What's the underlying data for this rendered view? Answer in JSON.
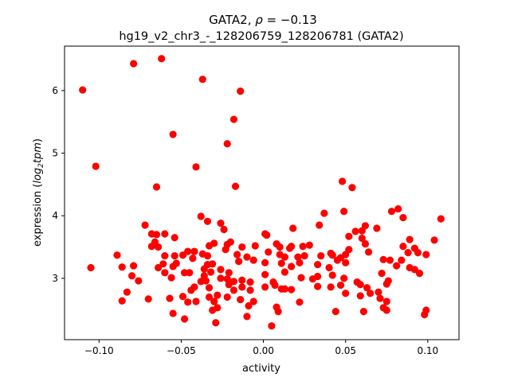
{
  "chart_data": {
    "type": "scatter",
    "title_gene": "GATA2",
    "title_rho_symbol": "ρ",
    "title_rho_value": " = −0.13",
    "subtitle": "hg19_v2_chr3_-_128206759_128206781 (GATA2)",
    "xlabel": "activity",
    "ylabel_prefix": "expression (",
    "ylabel_log": "log",
    "ylabel_sub": "2",
    "ylabel_tpm": "tpm",
    "ylabel_suffix": ")",
    "xlim": [
      -0.121,
      0.119
    ],
    "ylim": [
      2.02,
      6.71
    ],
    "xticks": [
      -0.1,
      -0.05,
      0.0,
      0.05,
      0.1
    ],
    "xtick_labels": [
      "−0.10",
      "−0.05",
      "0.00",
      "0.05",
      "0.10"
    ],
    "yticks": [
      3,
      4,
      5,
      6
    ],
    "ytick_labels": [
      "3",
      "4",
      "5",
      "6"
    ],
    "grid": false,
    "marker_color": "#ff0000",
    "points": [
      [
        -0.11,
        6.01
      ],
      [
        -0.079,
        6.43
      ],
      [
        -0.062,
        6.51
      ],
      [
        -0.037,
        6.18
      ],
      [
        -0.014,
        5.99
      ],
      [
        -0.018,
        5.54
      ],
      [
        -0.055,
        5.3
      ],
      [
        -0.022,
        5.15
      ],
      [
        -0.102,
        4.79
      ],
      [
        -0.041,
        4.78
      ],
      [
        -0.065,
        4.46
      ],
      [
        -0.017,
        4.47
      ],
      [
        0.048,
        4.55
      ],
      [
        0.054,
        4.45
      ],
      [
        0.108,
        3.95
      ],
      [
        -0.105,
        3.17
      ],
      [
        -0.089,
        3.37
      ],
      [
        -0.086,
        3.18
      ],
      [
        -0.079,
        3.2
      ],
      [
        -0.08,
        3.04
      ],
      [
        -0.076,
        2.96
      ],
      [
        -0.083,
        2.78
      ],
      [
        -0.086,
        2.64
      ],
      [
        -0.072,
        3.85
      ],
      [
        -0.07,
        2.67
      ],
      [
        -0.068,
        3.71
      ],
      [
        -0.065,
        3.7
      ],
      [
        -0.06,
        3.71
      ],
      [
        -0.066,
        3.58
      ],
      [
        -0.068,
        3.51
      ],
      [
        -0.064,
        3.5
      ],
      [
        -0.054,
        3.65
      ],
      [
        -0.06,
        3.36
      ],
      [
        -0.054,
        3.36
      ],
      [
        -0.061,
        3.23
      ],
      [
        -0.064,
        3.17
      ],
      [
        -0.06,
        3.09
      ],
      [
        -0.055,
        3.19
      ],
      [
        -0.053,
        3.24
      ],
      [
        -0.056,
        3.01
      ],
      [
        -0.049,
        3.37
      ],
      [
        -0.046,
        3.43
      ],
      [
        -0.042,
        3.43
      ],
      [
        -0.043,
        3.32
      ],
      [
        -0.048,
        3.09
      ],
      [
        -0.045,
        3.09
      ],
      [
        -0.038,
        3.99
      ],
      [
        -0.034,
        3.91
      ],
      [
        -0.026,
        3.88
      ],
      [
        -0.024,
        3.78
      ],
      [
        -0.033,
        3.52
      ],
      [
        -0.03,
        3.56
      ],
      [
        -0.022,
        3.54
      ],
      [
        -0.02,
        3.58
      ],
      [
        -0.023,
        3.46
      ],
      [
        -0.013,
        3.5
      ],
      [
        -0.005,
        3.52
      ],
      [
        -0.037,
        3.39
      ],
      [
        -0.034,
        3.36
      ],
      [
        -0.016,
        3.38
      ],
      [
        -0.015,
        3.27
      ],
      [
        -0.01,
        3.34
      ],
      [
        -0.006,
        3.29
      ],
      [
        -0.034,
        3.22
      ],
      [
        -0.031,
        3.23
      ],
      [
        -0.036,
        3.15
      ],
      [
        -0.032,
        3.1
      ],
      [
        -0.026,
        3.14
      ],
      [
        -0.021,
        3.09
      ],
      [
        -0.036,
        3.04
      ],
      [
        -0.035,
        2.96
      ],
      [
        -0.038,
        2.95
      ],
      [
        -0.026,
        3.0
      ],
      [
        -0.022,
        2.99
      ],
      [
        -0.018,
        2.95
      ],
      [
        -0.021,
        2.9
      ],
      [
        -0.013,
        2.97
      ],
      [
        -0.008,
        2.94
      ],
      [
        -0.033,
        2.85
      ],
      [
        -0.018,
        2.81
      ],
      [
        -0.013,
        2.86
      ],
      [
        -0.008,
        2.81
      ],
      [
        -0.042,
        2.86
      ],
      [
        -0.044,
        2.81
      ],
      [
        -0.049,
        2.71
      ],
      [
        -0.046,
        2.62
      ],
      [
        -0.041,
        2.63
      ],
      [
        -0.057,
        2.68
      ],
      [
        -0.055,
        2.44
      ],
      [
        -0.048,
        2.35
      ],
      [
        -0.033,
        2.7
      ],
      [
        -0.03,
        2.63
      ],
      [
        -0.028,
        2.73
      ],
      [
        -0.028,
        2.53
      ],
      [
        -0.031,
        2.49
      ],
      [
        -0.022,
        2.7
      ],
      [
        -0.029,
        2.29
      ],
      [
        -0.014,
        2.66
      ],
      [
        -0.009,
        2.56
      ],
      [
        -0.006,
        2.63
      ],
      [
        -0.01,
        2.39
      ],
      [
        0.037,
        4.04
      ],
      [
        0.049,
        4.07
      ],
      [
        0.078,
        4.07
      ],
      [
        0.082,
        4.11
      ],
      [
        0.085,
        3.97
      ],
      [
        0.034,
        3.85
      ],
      [
        0.018,
        3.8
      ],
      [
        0.069,
        3.8
      ],
      [
        0.062,
        3.84
      ],
      [
        0.06,
        3.76
      ],
      [
        0.056,
        3.75
      ],
      [
        0.052,
        3.67
      ],
      [
        0.06,
        3.64
      ],
      [
        0.062,
        3.55
      ],
      [
        0.064,
        3.42
      ],
      [
        0.052,
        3.46
      ],
      [
        0.089,
        3.62
      ],
      [
        0.104,
        3.61
      ],
      [
        0.085,
        3.51
      ],
      [
        0.092,
        3.48
      ],
      [
        0.088,
        3.41
      ],
      [
        0.094,
        3.41
      ],
      [
        0.099,
        3.38
      ],
      [
        0.084,
        3.29
      ],
      [
        0.081,
        3.2
      ],
      [
        0.073,
        3.3
      ],
      [
        0.077,
        3.29
      ],
      [
        0.089,
        3.17
      ],
      [
        0.092,
        3.14
      ],
      [
        0.095,
        3.08
      ],
      [
        0.072,
        3.08
      ],
      [
        0.076,
        2.96
      ],
      [
        0.075,
        2.91
      ],
      [
        0.07,
        2.78
      ],
      [
        0.071,
        2.68
      ],
      [
        0.075,
        2.63
      ],
      [
        0.073,
        2.53
      ],
      [
        0.075,
        2.49
      ],
      [
        0.099,
        2.49
      ],
      [
        0.098,
        2.42
      ],
      [
        0.057,
        2.94
      ],
      [
        0.059,
        2.9
      ],
      [
        0.063,
        2.85
      ],
      [
        0.065,
        2.76
      ],
      [
        0.059,
        2.72
      ],
      [
        0.061,
        2.47
      ],
      [
        0.044,
        2.47
      ],
      [
        0.05,
        2.76
      ],
      [
        0.047,
        2.89
      ],
      [
        0.049,
        3.0
      ],
      [
        0.041,
        2.86
      ],
      [
        0.042,
        3.05
      ],
      [
        0.04,
        3.17
      ],
      [
        0.033,
        3.22
      ],
      [
        0.035,
        3.36
      ],
      [
        0.041,
        3.4
      ],
      [
        0.042,
        3.37
      ],
      [
        0.045,
        3.29
      ],
      [
        0.047,
        3.33
      ],
      [
        0.05,
        3.38
      ],
      [
        0.05,
        3.25
      ],
      [
        0.03,
        2.99
      ],
      [
        0.033,
        3.03
      ],
      [
        0.033,
        2.87
      ],
      [
        0.023,
        3.01
      ],
      [
        0.022,
        2.62
      ],
      [
        0.028,
        3.53
      ],
      [
        0.024,
        3.51
      ],
      [
        0.025,
        3.36
      ],
      [
        0.021,
        3.34
      ],
      [
        0.022,
        3.25
      ],
      [
        0.017,
        3.19
      ],
      [
        0.013,
        3.1
      ],
      [
        0.016,
        3.48
      ],
      [
        0.017,
        3.51
      ],
      [
        0.008,
        3.55
      ],
      [
        0.01,
        3.5
      ],
      [
        0.01,
        3.38
      ],
      [
        0.013,
        3.34
      ],
      [
        0.011,
        3.24
      ],
      [
        0.003,
        3.42
      ],
      [
        0.001,
        3.25
      ],
      [
        0.001,
        3.06
      ],
      [
        0.002,
        3.69
      ],
      [
        0.001,
        3.71
      ],
      [
        0.006,
        2.94
      ],
      [
        0.007,
        2.89
      ],
      [
        0.011,
        2.83
      ],
      [
        0.013,
        2.83
      ],
      [
        0.017,
        2.82
      ],
      [
        0.001,
        2.86
      ],
      [
        0.008,
        2.54
      ],
      [
        0.009,
        2.47
      ],
      [
        0.005,
        2.24
      ]
    ]
  }
}
